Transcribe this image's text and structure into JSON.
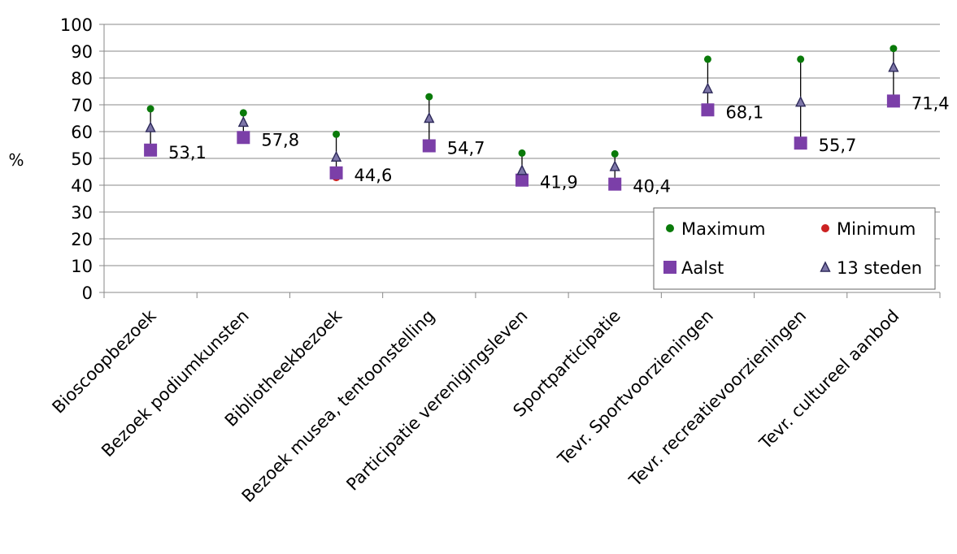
{
  "chart_data": {
    "type": "scatter",
    "ylabel": "%",
    "ylim": [
      0,
      100
    ],
    "y_ticks": [
      "0",
      "10",
      "20",
      "30",
      "40",
      "50",
      "60",
      "70",
      "80",
      "90",
      "100"
    ],
    "grid": "horizontal",
    "legend_position": "inside-bottom-right",
    "categories": [
      "Bioscoopbezoek",
      "Bezoek podiumkunsten",
      "Bibliotheekbezoek",
      "Bezoek musea, tentoonstelling",
      "Participatie verenigingsleven",
      "Sportparticipatie",
      "Tevr. Sportvoorzieningen",
      "Tevr. recreatievoorzieningen",
      "Tevr. cultureel aanbod"
    ],
    "series": [
      {
        "name": "Maximum",
        "color": "#0a7a0a",
        "marker": "circle",
        "values": [
          68.5,
          67,
          59,
          73,
          52,
          51.7,
          87,
          87,
          91
        ]
      },
      {
        "name": "Minimum",
        "color": "#cc2222",
        "marker": "circle",
        "values": [
          53.1,
          57.8,
          43,
          54.7,
          41.9,
          40.4,
          68.1,
          55.7,
          71.4
        ]
      },
      {
        "name": "Aalst",
        "color": "#7b3fa8",
        "marker": "square",
        "values": [
          53.1,
          57.8,
          44.6,
          54.7,
          41.9,
          40.4,
          68.1,
          55.7,
          71.4
        ]
      },
      {
        "name": "13 steden",
        "color": "#2e2a5a",
        "marker": "triangle",
        "values": [
          61.5,
          63.5,
          50.5,
          65,
          45.5,
          47,
          76,
          71,
          84
        ]
      }
    ],
    "data_labels": [
      "53,1",
      "57,8",
      "44,6",
      "54,7",
      "41,9",
      "40,4",
      "68,1",
      "55,7",
      "71,4"
    ]
  }
}
